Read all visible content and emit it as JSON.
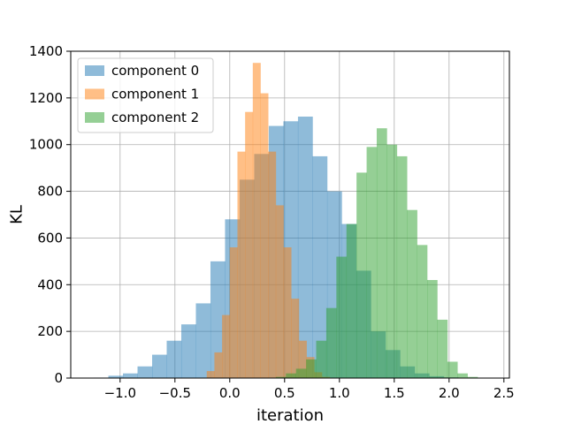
{
  "chart_data": {
    "type": "histogram",
    "xlabel": "iteration",
    "ylabel": "KL",
    "xlim": [
      -1.45,
      2.55
    ],
    "ylim": [
      0,
      1400
    ],
    "xticks": [
      -1.0,
      -0.5,
      0.0,
      0.5,
      1.0,
      1.5,
      2.0,
      2.5
    ],
    "xtick_labels": [
      "−1.0",
      "−0.5",
      "0.0",
      "0.5",
      "1.0",
      "1.5",
      "2.0",
      "2.5"
    ],
    "yticks": [
      0,
      200,
      400,
      600,
      800,
      1000,
      1200,
      1400
    ],
    "ytick_labels": [
      "0",
      "200",
      "400",
      "600",
      "800",
      "1000",
      "1200",
      "1400"
    ],
    "grid": true,
    "legend_position": "top-left",
    "alpha": 0.5,
    "series": [
      {
        "name": "component 0",
        "color": "#1f77b4",
        "edges": [
          -1.24,
          -1.107,
          -0.974,
          -0.841,
          -0.708,
          -0.575,
          -0.442,
          -0.309,
          -0.176,
          -0.043,
          0.09,
          0.223,
          0.356,
          0.489,
          0.622,
          0.755,
          0.888,
          1.021,
          1.154,
          1.287,
          1.42,
          1.553,
          1.686,
          1.819,
          1.952,
          2.085,
          2.218
        ],
        "counts": [
          2,
          10,
          20,
          50,
          100,
          160,
          230,
          320,
          500,
          680,
          850,
          960,
          1080,
          1100,
          1120,
          950,
          800,
          660,
          460,
          200,
          120,
          50,
          20,
          8,
          3,
          1
        ]
      },
      {
        "name": "component 1",
        "color": "#ff7f0e",
        "edges": [
          -0.21,
          -0.14,
          -0.07,
          0.0,
          0.07,
          0.14,
          0.21,
          0.28,
          0.35,
          0.42,
          0.49,
          0.56,
          0.63,
          0.7,
          0.77,
          0.84,
          0.91
        ],
        "counts": [
          30,
          110,
          270,
          560,
          970,
          1140,
          1350,
          1220,
          970,
          740,
          560,
          340,
          160,
          90,
          25,
          5
        ]
      },
      {
        "name": "component 2",
        "color": "#2ca02c",
        "edges": [
          0.42,
          0.512,
          0.604,
          0.696,
          0.788,
          0.88,
          0.972,
          1.064,
          1.156,
          1.248,
          1.34,
          1.432,
          1.524,
          1.616,
          1.708,
          1.8,
          1.892,
          1.984,
          2.076,
          2.168,
          2.26
        ],
        "counts": [
          5,
          20,
          40,
          80,
          160,
          300,
          520,
          660,
          880,
          990,
          1070,
          1000,
          950,
          720,
          570,
          420,
          250,
          70,
          20,
          5
        ]
      }
    ]
  }
}
